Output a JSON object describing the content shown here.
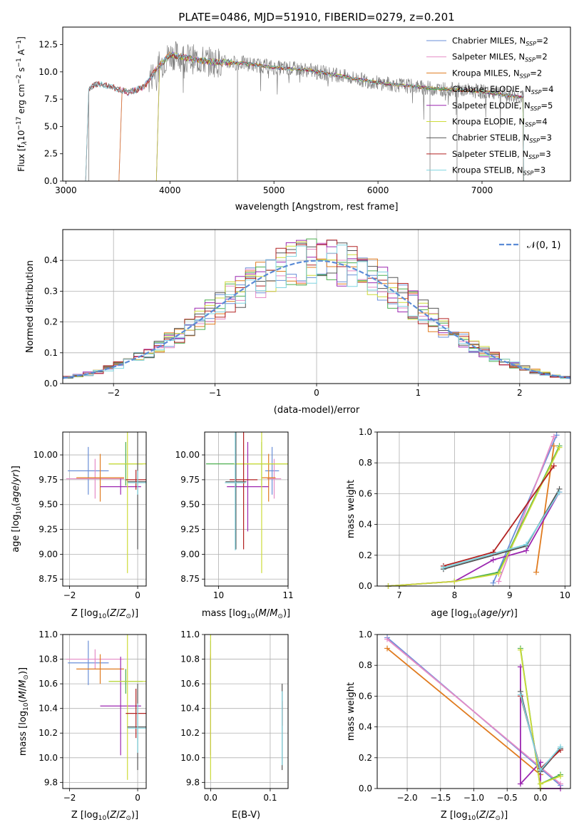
{
  "colors": {
    "chabrier_miles": "#6a8fd8",
    "salpeter_miles": "#e58bc6",
    "kroupa_miles": "#e07b1f",
    "chabrier_elodie": "#4caf50",
    "salpeter_elodie": "#9c27b0",
    "kroupa_elodie": "#cddc39",
    "chabrier_stelib": "#555555",
    "salpeter_stelib": "#b22222",
    "kroupa_stelib": "#7fd4e0",
    "gaussian": "#5b8bd6",
    "spectrum_grey": "#808080"
  },
  "chart_data": [
    {
      "id": "spectrum",
      "type": "line",
      "title": "PLATE=0486, MJD=51910, FIBERID=0279, z=0.201",
      "xlabel": "wavelength [Angstrom, rest frame]",
      "ylabel": "Flux [f$_\\lambda$10$^{-17}$ erg cm$^{-2}$ s$^{-1}$ A$^{-1}$]",
      "ylabel_parts": {
        "a": "Flux [f",
        "b": "λ",
        "c": "10",
        "d": "−17",
        "e": " erg cm",
        "f": "−2",
        "g": " s",
        "h": "−1",
        "i": " A",
        "j": "−1",
        "k": "]"
      },
      "xlim": [
        2970,
        7850
      ],
      "ylim": [
        0,
        14.1
      ],
      "xticks": [
        3000,
        4000,
        5000,
        6000,
        7000
      ],
      "yticks": [
        0.0,
        2.5,
        5.0,
        7.5,
        10.0,
        12.5
      ],
      "ytick_labels": [
        "0.0",
        "2.5",
        "5.0",
        "7.5",
        "10.0",
        "12.5"
      ],
      "legend_position": "upper-right",
      "legend": [
        {
          "pre": "Chabrier MILES, N",
          "sub": "SSP",
          "post": "=2",
          "color": "chabrier_miles"
        },
        {
          "pre": "Salpeter MILES, N",
          "sub": "SSP",
          "post": "=2",
          "color": "salpeter_miles"
        },
        {
          "pre": "Kroupa MILES, N",
          "sub": "SSP",
          "post": "=2",
          "color": "kroupa_miles"
        },
        {
          "pre": "Chabrier ELODIE, N",
          "sub": "SSP",
          "post": "=4",
          "color": "chabrier_elodie"
        },
        {
          "pre": "Salpeter ELODIE, N",
          "sub": "SSP",
          "post": "=5",
          "color": "salpeter_elodie"
        },
        {
          "pre": "Kroupa ELODIE, N",
          "sub": "SSP",
          "post": "=4",
          "color": "kroupa_elodie"
        },
        {
          "pre": "Chabrier STELIB, N",
          "sub": "SSP",
          "post": "=3",
          "color": "chabrier_stelib"
        },
        {
          "pre": "Salpeter STELIB, N",
          "sub": "SSP",
          "post": "=3",
          "color": "salpeter_stelib"
        },
        {
          "pre": "Kroupa STELIB, N",
          "sub": "SSP",
          "post": "=3",
          "color": "kroupa_stelib"
        }
      ],
      "model_starts": [
        {
          "color": "chabrier_miles",
          "x_start": 3540
        },
        {
          "color": "salpeter_miles",
          "x_start": 3540
        },
        {
          "color": "kroupa_miles",
          "x_start": 3540
        },
        {
          "color": "chabrier_elodie",
          "x_start": 3900
        },
        {
          "color": "salpeter_elodie",
          "x_start": 3900
        },
        {
          "color": "kroupa_elodie",
          "x_start": 3900
        },
        {
          "color": "chabrier_stelib",
          "x_start": 3220
        },
        {
          "color": "salpeter_stelib",
          "x_start": 3220
        },
        {
          "color": "kroupa_stelib",
          "x_start": 3220
        }
      ],
      "continuum": [
        {
          "x": 3220,
          "y": 8.4
        },
        {
          "x": 3300,
          "y": 8.9
        },
        {
          "x": 3450,
          "y": 8.6
        },
        {
          "x": 3600,
          "y": 8.1
        },
        {
          "x": 3750,
          "y": 8.6
        },
        {
          "x": 3850,
          "y": 10.0
        },
        {
          "x": 4000,
          "y": 11.6
        },
        {
          "x": 4200,
          "y": 11.2
        },
        {
          "x": 4400,
          "y": 10.9
        },
        {
          "x": 4700,
          "y": 10.8
        },
        {
          "x": 5000,
          "y": 10.4
        },
        {
          "x": 5300,
          "y": 10.2
        },
        {
          "x": 5600,
          "y": 9.7
        },
        {
          "x": 6000,
          "y": 9.0
        },
        {
          "x": 6500,
          "y": 8.5
        },
        {
          "x": 7000,
          "y": 8.2
        },
        {
          "x": 7500,
          "y": 7.5
        }
      ],
      "data_end": 7400
    },
    {
      "id": "residuals",
      "type": "line",
      "xlabel": "(data-model)/error",
      "ylabel": "Normed distribution",
      "xlim": [
        -2.5,
        2.5
      ],
      "ylim": [
        0,
        0.5
      ],
      "xticks": [
        -2,
        -1,
        0,
        1,
        2
      ],
      "xtick_labels": [
        "−2",
        "−1",
        "0",
        "1",
        "2"
      ],
      "yticks": [
        0.0,
        0.1,
        0.2,
        0.3,
        0.4
      ],
      "ytick_labels": [
        "0.0",
        "0.1",
        "0.2",
        "0.3",
        "0.4"
      ],
      "grid": true,
      "legend_position": "upper-right",
      "gaussian_label_script": "𝒩(0, 1)",
      "bins": {
        "start": -2.5,
        "width": 0.1,
        "count": 50
      }
    },
    {
      "id": "age-vs-Z",
      "type": "scatter",
      "xlabel": "Z [log$_{10}$(Z/Z$_\\odot$)]",
      "ylabel": "age  [log$_{10}$(age/yr)]",
      "xlim": [
        -2.2,
        0.25
      ],
      "ylim": [
        8.68,
        10.23
      ],
      "xticks": [
        -2,
        0
      ],
      "xtick_labels": [
        "−2",
        "0"
      ],
      "yticks": [
        8.75,
        9.0,
        9.25,
        9.5,
        9.75,
        10.0
      ],
      "ytick_labels": [
        "8.75",
        "9.00",
        "9.25",
        "9.50",
        "9.75",
        "10.00"
      ],
      "grid": true,
      "points": [
        {
          "color": "chabrier_miles",
          "x": -1.45,
          "y": 9.84,
          "xerr": 0.6,
          "yerr": 0.24
        },
        {
          "color": "salpeter_miles",
          "x": -1.25,
          "y": 9.76,
          "xerr": 0.85,
          "yerr": 0.2
        },
        {
          "color": "kroupa_miles",
          "x": -1.1,
          "y": 9.77,
          "xerr": 0.7,
          "yerr": 0.24
        },
        {
          "color": "chabrier_elodie",
          "x": -0.35,
          "y": 9.91,
          "xerr": 0.5,
          "yerr": 0.22
        },
        {
          "color": "salpeter_elodie",
          "x": -0.5,
          "y": 9.68,
          "xerr": 0.6,
          "yerr": 0.08
        },
        {
          "color": "kroupa_elodie",
          "x": -0.3,
          "y": 9.91,
          "xerr": 0.55,
          "yerr": 1.1
        },
        {
          "color": "chabrier_stelib",
          "x": 0.0,
          "y": 9.73,
          "xerr": 0.3,
          "yerr": 0.68
        },
        {
          "color": "salpeter_stelib",
          "x": -0.05,
          "y": 9.75,
          "xerr": 0.3,
          "yerr": 0.1
        },
        {
          "color": "kroupa_stelib",
          "x": 0.0,
          "y": 9.72,
          "xerr": 0.3,
          "yerr": 0.12
        }
      ]
    },
    {
      "id": "age-vs-mass",
      "type": "scatter",
      "xlabel": "mass [log$_{10}$(M/M$_\\odot$)]",
      "ylabel": "",
      "xlim": [
        9.8,
        11.0
      ],
      "ylim": [
        8.68,
        10.23
      ],
      "xticks": [
        10,
        11
      ],
      "xtick_labels": [
        "10",
        "11"
      ],
      "yticks": [
        8.75,
        9.0,
        9.25,
        9.5,
        9.75,
        10.0
      ],
      "ytick_labels": [
        "8.75",
        "9.00",
        "9.25",
        "9.50",
        "9.75",
        "10.00"
      ],
      "grid": true,
      "points": [
        {
          "color": "chabrier_miles",
          "x": 10.77,
          "y": 9.84,
          "xerr": 0.1,
          "yerr": 0.24
        },
        {
          "color": "salpeter_miles",
          "x": 10.8,
          "y": 9.76,
          "xerr": 0.1,
          "yerr": 0.2
        },
        {
          "color": "kroupa_miles",
          "x": 10.72,
          "y": 9.77,
          "xerr": 0.1,
          "yerr": 0.24
        },
        {
          "color": "chabrier_elodie",
          "x": 10.62,
          "y": 9.91,
          "xerr": 0.8,
          "yerr": 0.22
        },
        {
          "color": "salpeter_elodie",
          "x": 10.42,
          "y": 9.68,
          "xerr": 0.3,
          "yerr": 0.45
        },
        {
          "color": "kroupa_elodie",
          "x": 10.62,
          "y": 9.91,
          "xerr": 0.4,
          "yerr": 1.1
        },
        {
          "color": "chabrier_stelib",
          "x": 10.25,
          "y": 9.73,
          "xerr": 0.15,
          "yerr": 0.68
        },
        {
          "color": "salpeter_stelib",
          "x": 10.36,
          "y": 9.75,
          "xerr": 0.2,
          "yerr": 0.7
        },
        {
          "color": "kroupa_stelib",
          "x": 10.24,
          "y": 9.72,
          "xerr": 0.15,
          "yerr": 0.68
        }
      ]
    },
    {
      "id": "mass-weight-vs-age",
      "type": "line",
      "xlabel": "age  [log$_{10}$(age/yr)]",
      "ylabel": "mass weight",
      "xlim": [
        6.6,
        10.1
      ],
      "ylim": [
        0,
        1.0
      ],
      "xticks": [
        7,
        8,
        9,
        10
      ],
      "xtick_labels": [
        "7",
        "8",
        "9",
        "10"
      ],
      "yticks": [
        0.0,
        0.2,
        0.4,
        0.6,
        0.8,
        1.0
      ],
      "ytick_labels": [
        "0.0",
        "0.2",
        "0.4",
        "0.6",
        "0.8",
        "1.0"
      ],
      "grid": true,
      "series": [
        {
          "color": "chabrier_miles",
          "x": [
            8.7,
            9.85
          ],
          "y": [
            0.02,
            0.98
          ]
        },
        {
          "color": "salpeter_miles",
          "x": [
            8.8,
            9.8
          ],
          "y": [
            0.03,
            0.97
          ]
        },
        {
          "color": "kroupa_miles",
          "x": [
            9.48,
            9.8
          ],
          "y": [
            0.09,
            0.91
          ]
        },
        {
          "color": "chabrier_elodie",
          "x": [
            6.8,
            8.0,
            8.8,
            9.9
          ],
          "y": [
            0.0,
            0.03,
            0.09,
            0.91
          ]
        },
        {
          "color": "salpeter_elodie",
          "x": [
            6.8,
            8.0,
            8.7,
            9.3,
            9.9
          ],
          "y": [
            0.0,
            0.03,
            0.17,
            0.23,
            0.61
          ]
        },
        {
          "color": "kroupa_elodie",
          "x": [
            6.8,
            8.0,
            8.8,
            9.9
          ],
          "y": [
            0.0,
            0.03,
            0.08,
            0.9
          ]
        },
        {
          "color": "chabrier_stelib",
          "x": [
            7.8,
            9.3,
            9.9
          ],
          "y": [
            0.11,
            0.26,
            0.63
          ]
        },
        {
          "color": "salpeter_stelib",
          "x": [
            7.8,
            8.7,
            9.8
          ],
          "y": [
            0.13,
            0.22,
            0.78
          ]
        },
        {
          "color": "kroupa_stelib",
          "x": [
            7.8,
            9.3,
            9.9
          ],
          "y": [
            0.12,
            0.27,
            0.61
          ]
        }
      ]
    },
    {
      "id": "mass-vs-Z",
      "type": "scatter",
      "xlabel": "Z [log$_{10}$(Z/Z$_\\odot$)]",
      "ylabel": "mass [log$_{10}$(M/M$_\\odot$)]",
      "xlim": [
        -2.2,
        0.25
      ],
      "ylim": [
        9.75,
        11.0
      ],
      "xticks": [
        -2,
        0
      ],
      "xtick_labels": [
        "−2",
        "0"
      ],
      "yticks": [
        9.8,
        10.0,
        10.2,
        10.4,
        10.6,
        10.8,
        11.0
      ],
      "ytick_labels": [
        "9.8",
        "10.0",
        "10.2",
        "10.4",
        "10.6",
        "10.8",
        "11.0"
      ],
      "grid": true,
      "points": [
        {
          "color": "chabrier_miles",
          "x": -1.45,
          "y": 10.77,
          "xerr": 0.6,
          "yerr": 0.18
        },
        {
          "color": "salpeter_miles",
          "x": -1.25,
          "y": 10.8,
          "xerr": 0.85,
          "yerr": 0.08
        },
        {
          "color": "kroupa_miles",
          "x": -1.1,
          "y": 10.72,
          "xerr": 0.7,
          "yerr": 0.12
        },
        {
          "color": "chabrier_elodie",
          "x": -0.35,
          "y": 10.62,
          "xerr": 0.5,
          "yerr": 0.1
        },
        {
          "color": "salpeter_elodie",
          "x": -0.5,
          "y": 10.42,
          "xerr": 0.6,
          "yerr": 0.4
        },
        {
          "color": "kroupa_elodie",
          "x": -0.3,
          "y": 10.62,
          "xerr": 0.55,
          "yerr": 0.8
        },
        {
          "color": "chabrier_stelib",
          "x": 0.0,
          "y": 10.25,
          "xerr": 0.3,
          "yerr": 0.35
        },
        {
          "color": "salpeter_stelib",
          "x": -0.05,
          "y": 10.36,
          "xerr": 0.3,
          "yerr": 0.2
        },
        {
          "color": "kroupa_stelib",
          "x": 0.0,
          "y": 10.24,
          "xerr": 0.3,
          "yerr": 0.2
        }
      ]
    },
    {
      "id": "mass-vs-ebv",
      "type": "scatter",
      "xlabel": "E(B-V)",
      "ylabel": "",
      "xlim": [
        -0.01,
        0.13
      ],
      "ylim": [
        9.75,
        11.0
      ],
      "xticks": [
        0.0,
        0.1
      ],
      "xtick_labels": [
        "0.0",
        "0.1"
      ],
      "yticks": [
        9.8,
        10.0,
        10.2,
        10.4,
        10.6,
        10.8,
        11.0
      ],
      "ytick_labels": [
        "9.8",
        "10.0",
        "10.2",
        "10.4",
        "10.6",
        "10.8",
        "11.0"
      ],
      "grid": true,
      "points": [
        {
          "color": "chabrier_miles",
          "x": 0.0,
          "y": 10.77,
          "xerr": 0.0,
          "yerr": 0.18
        },
        {
          "color": "salpeter_miles",
          "x": 0.0,
          "y": 10.8,
          "xerr": 0.0,
          "yerr": 0.08
        },
        {
          "color": "kroupa_miles",
          "x": 0.0,
          "y": 10.72,
          "xerr": 0.0,
          "yerr": 0.12
        },
        {
          "color": "chabrier_elodie",
          "x": 0.0,
          "y": 10.62,
          "xerr": 0.0,
          "yerr": 0.2
        },
        {
          "color": "salpeter_elodie",
          "x": 0.0,
          "y": 10.42,
          "xerr": 0.0,
          "yerr": 0.4
        },
        {
          "color": "kroupa_elodie",
          "x": 0.0,
          "y": 10.62,
          "xerr": 0.0,
          "yerr": 0.8
        },
        {
          "color": "chabrier_stelib",
          "x": 0.12,
          "y": 10.25,
          "xerr": 0.0,
          "yerr": 0.35
        },
        {
          "color": "salpeter_stelib",
          "x": 0.12,
          "y": 10.36,
          "xerr": 0.0,
          "yerr": 0.1
        },
        {
          "color": "kroupa_stelib",
          "x": 0.12,
          "y": 10.24,
          "xerr": 0.0,
          "yerr": 0.3
        }
      ]
    },
    {
      "id": "mass-weight-vs-Z",
      "type": "line",
      "xlabel": "Z [log$_{10}$(Z/Z$_\\odot$)]",
      "ylabel": "mass weight",
      "xlim": [
        -2.45,
        0.45
      ],
      "ylim": [
        0,
        1.0
      ],
      "xticks": [
        -2.0,
        -1.5,
        -1.0,
        -0.5,
        0.0
      ],
      "xtick_labels": [
        "−2.0",
        "−1.5",
        "−1.0",
        "−0.5",
        "0.0"
      ],
      "yticks": [
        0.0,
        0.2,
        0.4,
        0.6,
        0.8,
        1.0
      ],
      "ytick_labels": [
        "0.0",
        "0.2",
        "0.4",
        "0.6",
        "0.8",
        "1.0"
      ],
      "grid": true,
      "series": [
        {
          "color": "chabrier_miles",
          "x": [
            -2.3,
            0.3
          ],
          "y": [
            0.98,
            0.02
          ]
        },
        {
          "color": "salpeter_miles",
          "x": [
            -2.3,
            0.3
          ],
          "y": [
            0.97,
            0.03
          ]
        },
        {
          "color": "kroupa_miles",
          "x": [
            -2.3,
            0.0
          ],
          "y": [
            0.91,
            0.09
          ]
        },
        {
          "color": "chabrier_elodie",
          "x": [
            -0.3,
            0.0,
            0.0,
            0.3
          ],
          "y": [
            0.91,
            0.0,
            0.03,
            0.09
          ]
        },
        {
          "color": "salpeter_elodie",
          "x": [
            -0.3,
            -0.3,
            0.0,
            0.0,
            0.3
          ],
          "y": [
            0.79,
            0.03,
            0.17,
            0.0,
            0.0
          ]
        },
        {
          "color": "kroupa_elodie",
          "x": [
            -0.3,
            0.0,
            0.0,
            0.3
          ],
          "y": [
            0.9,
            0.0,
            0.03,
            0.08
          ]
        },
        {
          "color": "chabrier_stelib",
          "x": [
            -0.3,
            0.0,
            0.3
          ],
          "y": [
            0.63,
            0.11,
            0.26
          ]
        },
        {
          "color": "salpeter_stelib",
          "x": [
            -0.3,
            0.0,
            0.3
          ],
          "y": [
            0.6,
            0.13,
            0.25
          ]
        },
        {
          "color": "kroupa_stelib",
          "x": [
            -0.3,
            0.0,
            0.3
          ],
          "y": [
            0.61,
            0.12,
            0.27
          ]
        }
      ]
    }
  ]
}
